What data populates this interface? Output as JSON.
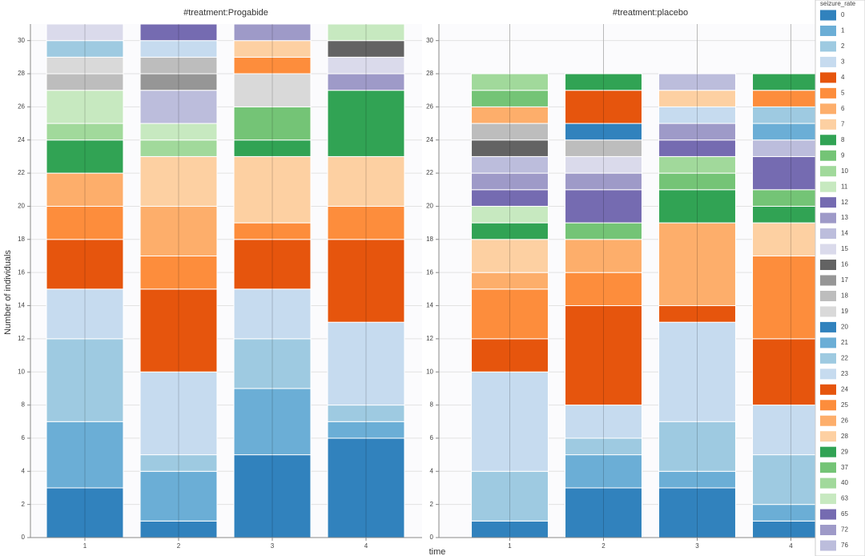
{
  "chart_data": [
    {
      "type": "bar",
      "stacked": true,
      "title": "#treatment:Progabide",
      "y_label": "Number of individuals",
      "x_label": "time",
      "categories": [
        "1",
        "2",
        "3",
        "4"
      ],
      "ylim": [
        0,
        31
      ],
      "yticks": [
        0,
        2,
        4,
        6,
        8,
        10,
        12,
        14,
        16,
        18,
        20,
        22,
        24,
        26,
        28,
        30
      ],
      "grid": true,
      "series": [
        {
          "name": "0",
          "color": "#3182bd",
          "values": [
            3,
            1,
            5,
            6
          ]
        },
        {
          "name": "1",
          "color": "#6baed6",
          "values": [
            4,
            3,
            4,
            1
          ]
        },
        {
          "name": "2",
          "color": "#9ecae1",
          "values": [
            5,
            1,
            3,
            1
          ]
        },
        {
          "name": "3",
          "color": "#c6dbef",
          "values": [
            3,
            5,
            3,
            5
          ]
        },
        {
          "name": "4",
          "color": "#e6550d",
          "values": [
            3,
            5,
            3,
            5
          ]
        },
        {
          "name": "5",
          "color": "#fd8d3c",
          "values": [
            2,
            2,
            1,
            2
          ]
        },
        {
          "name": "6",
          "color": "#fdae6b",
          "values": [
            2,
            3,
            null,
            null
          ]
        },
        {
          "name": "7",
          "color": "#fdd0a2",
          "values": [
            null,
            3,
            4,
            3
          ]
        },
        {
          "name": "8",
          "color": "#31a354",
          "values": [
            2,
            null,
            1,
            4
          ]
        },
        {
          "name": "9",
          "color": "#74c476",
          "values": [
            null,
            null,
            2,
            null
          ]
        },
        {
          "name": "10",
          "color": "#a1d99b",
          "values": [
            1,
            1,
            null,
            null
          ]
        },
        {
          "name": "11",
          "color": "#c7e9c0",
          "values": [
            2,
            1,
            null,
            null
          ]
        },
        {
          "name": "12",
          "color": "#756bb1",
          "values": [
            null,
            null,
            null,
            null
          ]
        },
        {
          "name": "13",
          "color": "#9e9ac8",
          "values": [
            null,
            null,
            null,
            1
          ]
        },
        {
          "name": "14",
          "color": "#bcbddc",
          "values": [
            null,
            2,
            null,
            null
          ]
        },
        {
          "name": "15",
          "color": "#dadaeb",
          "values": [
            null,
            null,
            null,
            1
          ]
        },
        {
          "name": "16",
          "color": "#636363",
          "values": [
            null,
            null,
            null,
            1
          ]
        },
        {
          "name": "17",
          "color": "#969696",
          "values": [
            null,
            1,
            null,
            null
          ]
        },
        {
          "name": "18",
          "color": "#bdbdbd",
          "values": [
            1,
            1,
            null,
            null
          ]
        },
        {
          "name": "19",
          "color": "#d9d9d9",
          "values": [
            1,
            null,
            2,
            null
          ]
        },
        {
          "name": "20",
          "color": "#3182bd",
          "values": [
            null,
            null,
            null,
            null
          ]
        },
        {
          "name": "21",
          "color": "#6baed6",
          "values": [
            null,
            null,
            null,
            null
          ]
        },
        {
          "name": "22",
          "color": "#9ecae1",
          "values": [
            1,
            null,
            null,
            null
          ]
        },
        {
          "name": "23",
          "color": "#c6dbef",
          "values": [
            null,
            1,
            null,
            null
          ]
        },
        {
          "name": "24",
          "color": "#e6550d",
          "values": [
            null,
            null,
            null,
            null
          ]
        },
        {
          "name": "25",
          "color": "#fd8d3c",
          "values": [
            null,
            null,
            1,
            null
          ]
        },
        {
          "name": "26",
          "color": "#fdae6b",
          "values": [
            null,
            null,
            null,
            null
          ]
        },
        {
          "name": "28",
          "color": "#fdd0a2",
          "values": [
            null,
            null,
            1,
            null
          ]
        },
        {
          "name": "29",
          "color": "#31a354",
          "values": [
            null,
            null,
            null,
            null
          ]
        },
        {
          "name": "37",
          "color": "#74c476",
          "values": [
            null,
            null,
            null,
            null
          ]
        },
        {
          "name": "40",
          "color": "#a1d99b",
          "values": [
            null,
            null,
            null,
            null
          ]
        },
        {
          "name": "63",
          "color": "#c7e9c0",
          "values": [
            null,
            null,
            null,
            1
          ]
        },
        {
          "name": "65",
          "color": "#756bb1",
          "values": [
            null,
            1,
            null,
            null
          ]
        },
        {
          "name": "72",
          "color": "#9e9ac8",
          "values": [
            null,
            null,
            1,
            null
          ]
        },
        {
          "name": "76",
          "color": "#dadaeb",
          "values": [
            1,
            null,
            null,
            null
          ]
        }
      ]
    },
    {
      "type": "bar",
      "stacked": true,
      "title": "#treatment:placebo",
      "legend_title": "seizure_rate",
      "categories": [
        "1",
        "2",
        "3",
        "4"
      ],
      "ylim": [
        0,
        31
      ],
      "yticks": [
        0,
        2,
        4,
        6,
        8,
        10,
        12,
        14,
        16,
        18,
        20,
        22,
        24,
        26,
        28,
        30
      ],
      "grid": true,
      "series": [
        {
          "name": "0",
          "color": "#3182bd",
          "values": [
            1,
            3,
            3,
            1
          ]
        },
        {
          "name": "1",
          "color": "#6baed6",
          "values": [
            null,
            2,
            1,
            1
          ]
        },
        {
          "name": "2",
          "color": "#9ecae1",
          "values": [
            3,
            1,
            3,
            3
          ]
        },
        {
          "name": "3",
          "color": "#c6dbef",
          "values": [
            6,
            2,
            6,
            3
          ]
        },
        {
          "name": "4",
          "color": "#e6550d",
          "values": [
            2,
            6,
            1,
            4
          ]
        },
        {
          "name": "5",
          "color": "#fd8d3c",
          "values": [
            3,
            2,
            null,
            5
          ]
        },
        {
          "name": "6",
          "color": "#fdae6b",
          "values": [
            1,
            2,
            5,
            null
          ]
        },
        {
          "name": "7",
          "color": "#fdd0a2",
          "values": [
            2,
            null,
            null,
            2
          ]
        },
        {
          "name": "8",
          "color": "#31a354",
          "values": [
            1,
            null,
            2,
            1
          ]
        },
        {
          "name": "9",
          "color": "#74c476",
          "values": [
            null,
            1,
            1,
            1
          ]
        },
        {
          "name": "10",
          "color": "#a1d99b",
          "values": [
            null,
            null,
            1,
            null
          ]
        },
        {
          "name": "11",
          "color": "#c7e9c0",
          "values": [
            1,
            null,
            null,
            null
          ]
        },
        {
          "name": "12",
          "color": "#756bb1",
          "values": [
            1,
            2,
            1,
            2
          ]
        },
        {
          "name": "13",
          "color": "#9e9ac8",
          "values": [
            1,
            1,
            1,
            null
          ]
        },
        {
          "name": "14",
          "color": "#bcbddc",
          "values": [
            1,
            null,
            null,
            1
          ]
        },
        {
          "name": "15",
          "color": "#dadaeb",
          "values": [
            null,
            1,
            null,
            null
          ]
        },
        {
          "name": "16",
          "color": "#636363",
          "values": [
            1,
            null,
            null,
            null
          ]
        },
        {
          "name": "17",
          "color": "#969696",
          "values": [
            null,
            null,
            null,
            null
          ]
        },
        {
          "name": "18",
          "color": "#bdbdbd",
          "values": [
            1,
            1,
            null,
            null
          ]
        },
        {
          "name": "19",
          "color": "#d9d9d9",
          "values": [
            null,
            null,
            null,
            null
          ]
        },
        {
          "name": "20",
          "color": "#3182bd",
          "values": [
            null,
            1,
            null,
            null
          ]
        },
        {
          "name": "21",
          "color": "#6baed6",
          "values": [
            null,
            null,
            null,
            1
          ]
        },
        {
          "name": "22",
          "color": "#9ecae1",
          "values": [
            null,
            null,
            null,
            1
          ]
        },
        {
          "name": "23",
          "color": "#c6dbef",
          "values": [
            null,
            null,
            1,
            null
          ]
        },
        {
          "name": "24",
          "color": "#e6550d",
          "values": [
            null,
            2,
            null,
            null
          ]
        },
        {
          "name": "25",
          "color": "#fd8d3c",
          "values": [
            null,
            null,
            null,
            1
          ]
        },
        {
          "name": "26",
          "color": "#fdae6b",
          "values": [
            1,
            null,
            null,
            null
          ]
        },
        {
          "name": "28",
          "color": "#fdd0a2",
          "values": [
            null,
            null,
            1,
            null
          ]
        },
        {
          "name": "29",
          "color": "#31a354",
          "values": [
            null,
            1,
            null,
            1
          ]
        },
        {
          "name": "37",
          "color": "#74c476",
          "values": [
            1,
            null,
            null,
            null
          ]
        },
        {
          "name": "40",
          "color": "#a1d99b",
          "values": [
            1,
            null,
            null,
            null
          ]
        },
        {
          "name": "63",
          "color": "#c7e9c0",
          "values": [
            null,
            null,
            null,
            null
          ]
        },
        {
          "name": "65",
          "color": "#756bb1",
          "values": [
            null,
            null,
            null,
            null
          ]
        },
        {
          "name": "72",
          "color": "#9e9ac8",
          "values": [
            null,
            null,
            null,
            null
          ]
        },
        {
          "name": "76",
          "color": "#bcbddc",
          "values": [
            null,
            null,
            1,
            null
          ]
        }
      ]
    }
  ]
}
